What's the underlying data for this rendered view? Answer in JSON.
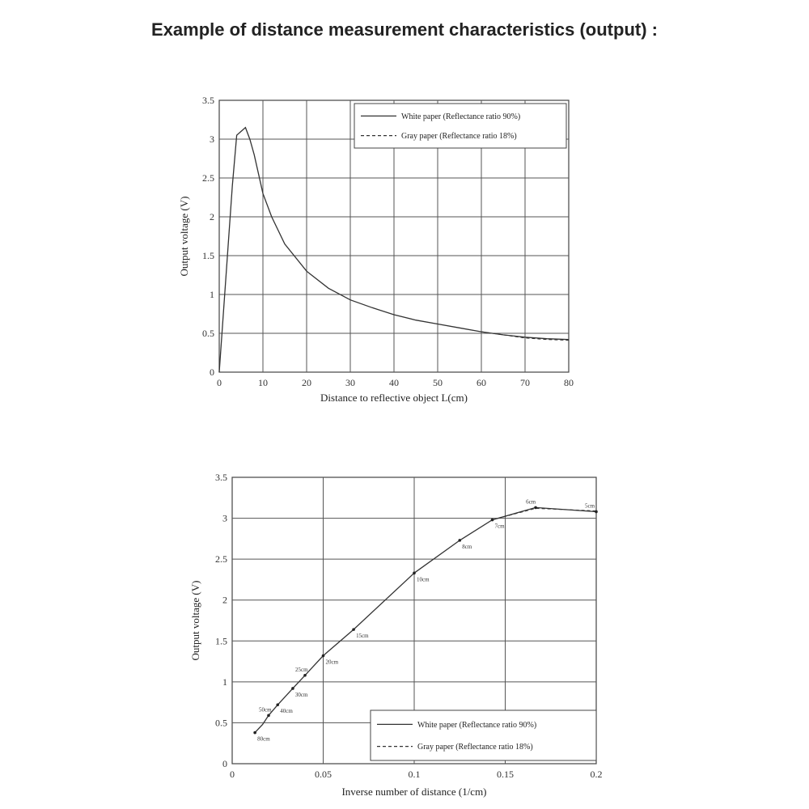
{
  "page": {
    "title": "Example of distance measurement characteristics (output) :"
  },
  "chart_data": [
    {
      "type": "line",
      "xlabel": "Distance to reflective object L(cm)",
      "ylabel": "Output voltage (V)",
      "xlim": [
        0,
        80
      ],
      "ylim": [
        0,
        3.5
      ],
      "x_ticks": [
        "0",
        "10",
        "20",
        "30",
        "40",
        "50",
        "60",
        "70",
        "80"
      ],
      "y_ticks": [
        "0",
        "0.5",
        "1",
        "1.5",
        "2",
        "2.5",
        "3",
        "3.5"
      ],
      "grid": true,
      "legend_position": "top-right",
      "series": [
        {
          "name": "White paper (Reflectance ratio 90%)",
          "style": "solid",
          "x": [
            0,
            1,
            2,
            3,
            4,
            5,
            6,
            7,
            8,
            10,
            12,
            15,
            20,
            25,
            30,
            35,
            40,
            45,
            50,
            55,
            60,
            65,
            70,
            75,
            80
          ],
          "y": [
            0,
            0.8,
            1.6,
            2.4,
            3.05,
            3.1,
            3.15,
            3.0,
            2.8,
            2.3,
            2.0,
            1.65,
            1.3,
            1.08,
            0.93,
            0.83,
            0.74,
            0.67,
            0.62,
            0.57,
            0.52,
            0.48,
            0.45,
            0.43,
            0.42
          ]
        },
        {
          "name": "Gray paper (Reflectance ratio 18%)",
          "style": "dashed",
          "x": [
            60,
            65,
            70,
            75,
            80
          ],
          "y": [
            0.52,
            0.48,
            0.44,
            0.42,
            0.41
          ]
        }
      ]
    },
    {
      "type": "line",
      "xlabel": "Inverse number of distance (1/cm)",
      "ylabel": "Output voltage (V)",
      "xlim": [
        0,
        0.2
      ],
      "ylim": [
        0,
        3.5
      ],
      "x_ticks": [
        "0",
        "0.05",
        "0.1",
        "0.15",
        "0.2"
      ],
      "y_ticks": [
        "0",
        "0.5",
        "1",
        "1.5",
        "2",
        "2.5",
        "3",
        "3.5"
      ],
      "grid": true,
      "legend_position": "bottom-right",
      "series": [
        {
          "name": "White paper (Reflectance ratio 90%)",
          "style": "solid",
          "x": [
            0.0125,
            0.0167,
            0.02,
            0.025,
            0.0333,
            0.04,
            0.05,
            0.0667,
            0.1,
            0.125,
            0.1429,
            0.1667,
            0.2
          ],
          "y": [
            0.38,
            0.48,
            0.59,
            0.72,
            0.92,
            1.08,
            1.32,
            1.64,
            2.33,
            2.73,
            2.98,
            3.13,
            3.08
          ]
        },
        {
          "name": "Gray paper (Reflectance ratio 18%)",
          "style": "dashed",
          "x": [
            0.1429,
            0.1667,
            0.2
          ],
          "y": [
            2.98,
            3.12,
            3.09
          ]
        }
      ],
      "point_labels": [
        {
          "x": 0.0125,
          "y": 0.38,
          "text": "80cm"
        },
        {
          "x": 0.02,
          "y": 0.59,
          "text": "50cm"
        },
        {
          "x": 0.025,
          "y": 0.72,
          "text": "40cm"
        },
        {
          "x": 0.0333,
          "y": 0.92,
          "text": "30cm"
        },
        {
          "x": 0.04,
          "y": 1.08,
          "text": "25cm"
        },
        {
          "x": 0.05,
          "y": 1.32,
          "text": "20cm"
        },
        {
          "x": 0.0667,
          "y": 1.64,
          "text": "15cm"
        },
        {
          "x": 0.1,
          "y": 2.33,
          "text": "10cm"
        },
        {
          "x": 0.125,
          "y": 2.73,
          "text": "8cm"
        },
        {
          "x": 0.1429,
          "y": 2.98,
          "text": "7cm"
        },
        {
          "x": 0.1667,
          "y": 3.13,
          "text": "6cm"
        },
        {
          "x": 0.2,
          "y": 3.08,
          "text": "5cm"
        }
      ]
    }
  ]
}
